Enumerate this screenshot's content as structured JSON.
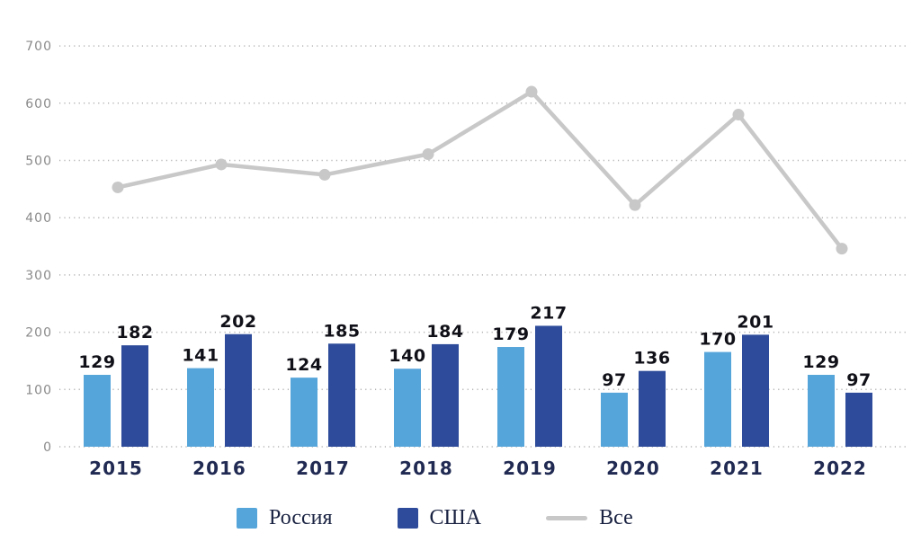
{
  "chart_data": {
    "type": "bar+line",
    "title": "",
    "categories": [
      "2015",
      "2016",
      "2017",
      "2018",
      "2019",
      "2020",
      "2021",
      "2022"
    ],
    "series": [
      {
        "name": "Россия",
        "type": "bar",
        "color": "#56a5da",
        "values": [
          129,
          141,
          124,
          140,
          179,
          97,
          170,
          129
        ]
      },
      {
        "name": "США",
        "type": "bar",
        "color": "#2d4b9a",
        "values": [
          182,
          202,
          185,
          184,
          217,
          136,
          201,
          97
        ]
      },
      {
        "name": "Все",
        "type": "line",
        "color": "#c8c8c8",
        "values": [
          453,
          493,
          475,
          511,
          620,
          422,
          580,
          346
        ]
      }
    ],
    "y_ticks": [
      0,
      100,
      200,
      300,
      400,
      500,
      600,
      700
    ],
    "ylim": [
      0,
      750
    ],
    "bar_value_labels_shown": true,
    "grid": "horizontal-dotted",
    "grid_color": "#b3b3b3",
    "axis_tick_color": "#8a8a8a",
    "x_tick_color": "#202a52",
    "bar_label_color": "#101018",
    "legend_position": "bottom"
  },
  "legend": {
    "items": [
      {
        "label": "Россия",
        "swatch": "square"
      },
      {
        "label": "США",
        "swatch": "square"
      },
      {
        "label": "Все",
        "swatch": "line"
      }
    ]
  }
}
